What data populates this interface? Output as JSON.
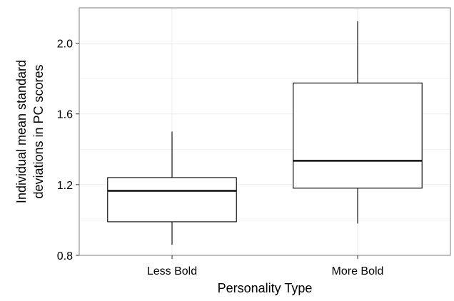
{
  "chart_data": {
    "type": "boxplot",
    "title": "",
    "xlabel": "Personality Type",
    "ylabel_lines": [
      "Individual mean standard",
      "deviations in PC scores"
    ],
    "categories": [
      "Less Bold",
      "More Bold"
    ],
    "boxes": [
      {
        "category": "Less Bold",
        "whisker_low": 0.86,
        "q1": 0.99,
        "median": 1.165,
        "q3": 1.24,
        "whisker_high": 1.5
      },
      {
        "category": "More Bold",
        "whisker_low": 0.98,
        "q1": 1.18,
        "median": 1.335,
        "q3": 1.775,
        "whisker_high": 2.125
      }
    ],
    "ylim": [
      0.8,
      2.2
    ],
    "yticks": [
      0.8,
      1.2,
      1.6,
      2.0
    ],
    "ytick_labels": [
      "0.8",
      "1.2",
      "1.6",
      "2.0"
    ],
    "grid": true,
    "legend": "none",
    "colors": {
      "panel_border": "#7f7f7f",
      "grid": "#ebebeb",
      "box_fill": "#ffffff",
      "box_line": "#000000",
      "tick": "#333333"
    }
  }
}
